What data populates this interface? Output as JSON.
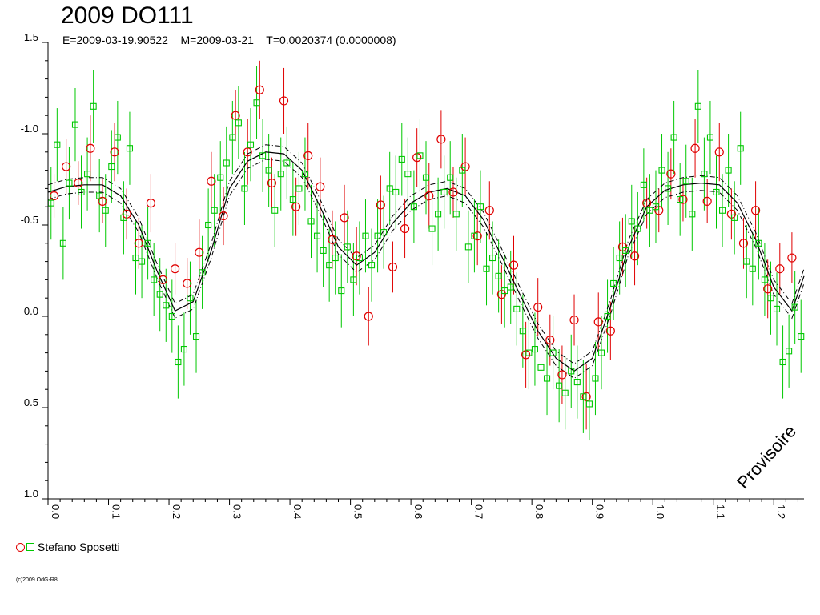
{
  "chart_data": {
    "type": "scatter",
    "title": "2009 DO111",
    "subtitle": "E=2009-03-19.90522    M=2009-03-21    T=0.0020374 (0.0000008)",
    "xlim": [
      0.0,
      1.25
    ],
    "ylim": [
      -1.5,
      1.0
    ],
    "y_inverted": true,
    "x_ticks": [
      "0.0",
      "0.1",
      "0.2",
      "0.3",
      "0.4",
      "0.5",
      "0.6",
      "0.7",
      "0.8",
      "0.9",
      "1.0",
      "1.1",
      "1.2"
    ],
    "y_ticks": [
      "-1.5",
      "-1.0",
      "-0.5",
      "0.0",
      "0.5",
      "1.0"
    ],
    "legend": [
      {
        "name": "Stefano Sposetti",
        "markers": [
          "circle",
          "square"
        ],
        "colors": [
          "#e00000",
          "#00c800"
        ]
      }
    ],
    "watermark": "Provisoire",
    "grid": false,
    "fit_curve": {
      "x": [
        0.0,
        0.03,
        0.06,
        0.09,
        0.12,
        0.15,
        0.18,
        0.21,
        0.24,
        0.27,
        0.3,
        0.33,
        0.36,
        0.39,
        0.42,
        0.45,
        0.48,
        0.51,
        0.54,
        0.57,
        0.6,
        0.63,
        0.66,
        0.69,
        0.72,
        0.75,
        0.78,
        0.81,
        0.84,
        0.87,
        0.9,
        0.93,
        0.96,
        0.99,
        1.02,
        1.05,
        1.08,
        1.11,
        1.14,
        1.17,
        1.2,
        1.23,
        1.25
      ],
      "y": [
        -0.68,
        -0.71,
        -0.72,
        -0.72,
        -0.66,
        -0.5,
        -0.25,
        -0.03,
        -0.08,
        -0.36,
        -0.7,
        -0.85,
        -0.9,
        -0.89,
        -0.8,
        -0.6,
        -0.38,
        -0.28,
        -0.35,
        -0.51,
        -0.62,
        -0.68,
        -0.7,
        -0.66,
        -0.53,
        -0.33,
        -0.12,
        0.08,
        0.23,
        0.3,
        0.23,
        -0.05,
        -0.38,
        -0.6,
        -0.69,
        -0.72,
        -0.73,
        -0.72,
        -0.62,
        -0.42,
        -0.16,
        -0.03,
        -0.22
      ],
      "envelope": 0.04
    },
    "series": [
      {
        "name": "Stefano Sposetti",
        "marker": "circle",
        "color": "#e00000",
        "x": [
          0.01,
          0.03,
          0.05,
          0.07,
          0.09,
          0.11,
          0.13,
          0.15,
          0.17,
          0.19,
          0.21,
          0.23,
          0.25,
          0.27,
          0.29,
          0.31,
          0.33,
          0.35,
          0.37,
          0.39,
          0.41,
          0.43,
          0.45,
          0.47,
          0.49,
          0.51,
          0.53,
          0.55,
          0.57,
          0.59,
          0.61,
          0.63,
          0.65,
          0.67,
          0.69,
          0.71,
          0.73,
          0.75,
          0.77,
          0.79,
          0.81,
          0.83,
          0.85,
          0.87,
          0.89,
          0.91,
          0.93,
          0.95,
          0.97,
          0.99,
          1.01,
          1.03,
          1.05,
          1.07,
          1.09,
          1.11,
          1.13,
          1.15,
          1.17,
          1.19,
          1.21,
          1.23
        ],
        "y": [
          -0.66,
          -0.82,
          -0.73,
          -0.92,
          -0.63,
          -0.9,
          -0.56,
          -0.4,
          -0.62,
          -0.2,
          -0.26,
          -0.18,
          -0.35,
          -0.74,
          -0.55,
          -1.1,
          -0.9,
          -1.24,
          -0.73,
          -1.18,
          -0.6,
          -0.88,
          -0.71,
          -0.42,
          -0.54,
          -0.33,
          0.0,
          -0.61,
          -0.27,
          -0.48,
          -0.87,
          -0.66,
          -0.97,
          -0.68,
          -0.82,
          -0.44,
          -0.58,
          -0.12,
          -0.28,
          0.21,
          -0.05,
          0.13,
          0.32,
          0.02,
          0.44,
          0.03,
          0.08,
          -0.38,
          -0.33,
          -0.62,
          -0.58,
          -0.78,
          -0.64,
          -0.92,
          -0.63,
          -0.9,
          -0.56,
          -0.4,
          -0.58,
          -0.15,
          -0.26,
          -0.32
        ],
        "err": [
          0.12,
          0.15,
          0.12,
          0.18,
          0.12,
          0.16,
          0.14,
          0.14,
          0.16,
          0.16,
          0.14,
          0.14,
          0.18,
          0.16,
          0.16,
          0.14,
          0.18,
          0.16,
          0.14,
          0.18,
          0.16,
          0.18,
          0.16,
          0.16,
          0.18,
          0.16,
          0.16,
          0.16,
          0.14,
          0.16,
          0.16,
          0.18,
          0.16,
          0.14,
          0.16,
          0.16,
          0.16,
          0.16,
          0.16,
          0.18,
          0.16,
          0.14,
          0.16,
          0.14,
          0.18,
          0.16,
          0.16,
          0.16,
          0.16,
          0.14,
          0.12,
          0.14,
          0.12,
          0.16,
          0.12,
          0.16,
          0.14,
          0.14,
          0.16,
          0.16,
          0.14,
          0.14
        ]
      },
      {
        "name": "Stefano Sposetti",
        "marker": "square",
        "color": "#00c800",
        "x": [
          0.005,
          0.015,
          0.025,
          0.035,
          0.045,
          0.055,
          0.065,
          0.075,
          0.085,
          0.095,
          0.105,
          0.115,
          0.125,
          0.135,
          0.145,
          0.155,
          0.165,
          0.175,
          0.185,
          0.195,
          0.205,
          0.215,
          0.225,
          0.235,
          0.245,
          0.255,
          0.265,
          0.275,
          0.285,
          0.295,
          0.305,
          0.315,
          0.325,
          0.335,
          0.345,
          0.355,
          0.365,
          0.375,
          0.385,
          0.395,
          0.405,
          0.415,
          0.425,
          0.435,
          0.445,
          0.455,
          0.465,
          0.475,
          0.485,
          0.495,
          0.505,
          0.515,
          0.525,
          0.535,
          0.545,
          0.555,
          0.565,
          0.575,
          0.585,
          0.595,
          0.605,
          0.615,
          0.625,
          0.635,
          0.645,
          0.655,
          0.665,
          0.675,
          0.685,
          0.695,
          0.705,
          0.715,
          0.725,
          0.735,
          0.745,
          0.755,
          0.765,
          0.775,
          0.785,
          0.795,
          0.805,
          0.815,
          0.825,
          0.835,
          0.845,
          0.855,
          0.865,
          0.875,
          0.885,
          0.895,
          0.905,
          0.915,
          0.925,
          0.935,
          0.945,
          0.955,
          0.965,
          0.975,
          0.985,
          0.995,
          1.005,
          1.015,
          1.025,
          1.035,
          1.045,
          1.055,
          1.065,
          1.075,
          1.085,
          1.095,
          1.105,
          1.115,
          1.125,
          1.135,
          1.145,
          1.155,
          1.165,
          1.175,
          1.185,
          1.195,
          1.205,
          1.215,
          1.225,
          1.235,
          1.245
        ],
        "y": [
          -0.62,
          -0.94,
          -0.4,
          -0.73,
          -1.05,
          -0.68,
          -0.78,
          -1.15,
          -0.66,
          -0.58,
          -0.82,
          -0.98,
          -0.54,
          -0.92,
          -0.32,
          -0.3,
          -0.4,
          -0.2,
          -0.12,
          -0.06,
          0.0,
          0.25,
          0.18,
          -0.1,
          0.11,
          -0.24,
          -0.5,
          -0.58,
          -0.76,
          -0.84,
          -0.98,
          -1.06,
          -0.7,
          -0.94,
          -1.17,
          -0.88,
          -0.8,
          -0.58,
          -0.78,
          -0.84,
          -0.64,
          -0.7,
          -0.78,
          -0.52,
          -0.44,
          -0.36,
          -0.28,
          -0.32,
          -0.14,
          -0.38,
          -0.2,
          -0.32,
          -0.44,
          -0.28,
          -0.44,
          -0.46,
          -0.7,
          -0.68,
          -0.86,
          -0.78,
          -0.6,
          -0.88,
          -0.76,
          -0.48,
          -0.56,
          -0.68,
          -0.76,
          -0.56,
          -0.8,
          -0.38,
          -0.44,
          -0.6,
          -0.26,
          -0.32,
          -0.22,
          -0.14,
          -0.16,
          -0.04,
          0.08,
          0.2,
          0.18,
          0.28,
          0.34,
          0.2,
          0.38,
          0.42,
          0.3,
          0.36,
          0.44,
          0.48,
          0.34,
          0.2,
          0.0,
          -0.18,
          -0.32,
          -0.36,
          -0.52,
          -0.48,
          -0.72,
          -0.58,
          -0.6,
          -0.8,
          -0.7,
          -0.98,
          -0.64,
          -0.74,
          -0.56,
          -1.15,
          -0.78,
          -0.98,
          -0.68,
          -0.58,
          -0.8,
          -0.54,
          -0.92,
          -0.3,
          -0.26,
          -0.4,
          -0.2,
          -0.1,
          -0.04,
          0.25,
          0.19,
          -0.05,
          0.11
        ]
      }
    ]
  }
}
